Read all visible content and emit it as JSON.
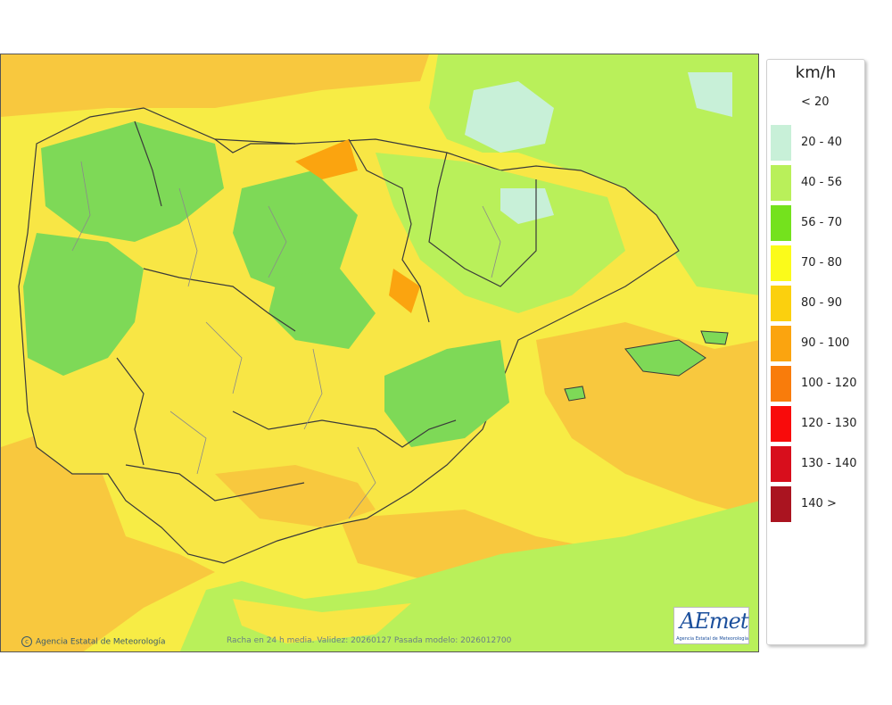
{
  "map": {
    "credit": "Agencia Estatal de Meteorología",
    "caption": "Racha en 24 h media. Validez: 20260127 Pasada modelo: 2026012700",
    "logo_text": "AEmet",
    "logo_subtitle": "Agencia Estatal de Meteorología"
  },
  "legend": {
    "title": "km/h",
    "items": [
      {
        "label": "< 20",
        "color": "#ffffff"
      },
      {
        "label": "20 - 40",
        "color": "#c8f0d8"
      },
      {
        "label": "40 - 56",
        "color": "#b9f05a"
      },
      {
        "label": "56 - 70",
        "color": "#74e21d"
      },
      {
        "label": "70 - 80",
        "color": "#fbfb1a"
      },
      {
        "label": "80 - 90",
        "color": "#fbd00e"
      },
      {
        "label": "90 - 100",
        "color": "#fba40f"
      },
      {
        "label": "100 - 120",
        "color": "#f97c0b"
      },
      {
        "label": "120 - 130",
        "color": "#f90b0b"
      },
      {
        "label": "130 - 140",
        "color": "#d80e1c"
      },
      {
        "label": "140 >",
        "color": "#aa1420"
      }
    ]
  },
  "colors": {
    "sea_base": "#f7ec45",
    "sea_high": "#f8c83e",
    "land_low": "#7ed957",
    "land_mid": "#f8e645",
    "borders": "#3a3a3a"
  }
}
